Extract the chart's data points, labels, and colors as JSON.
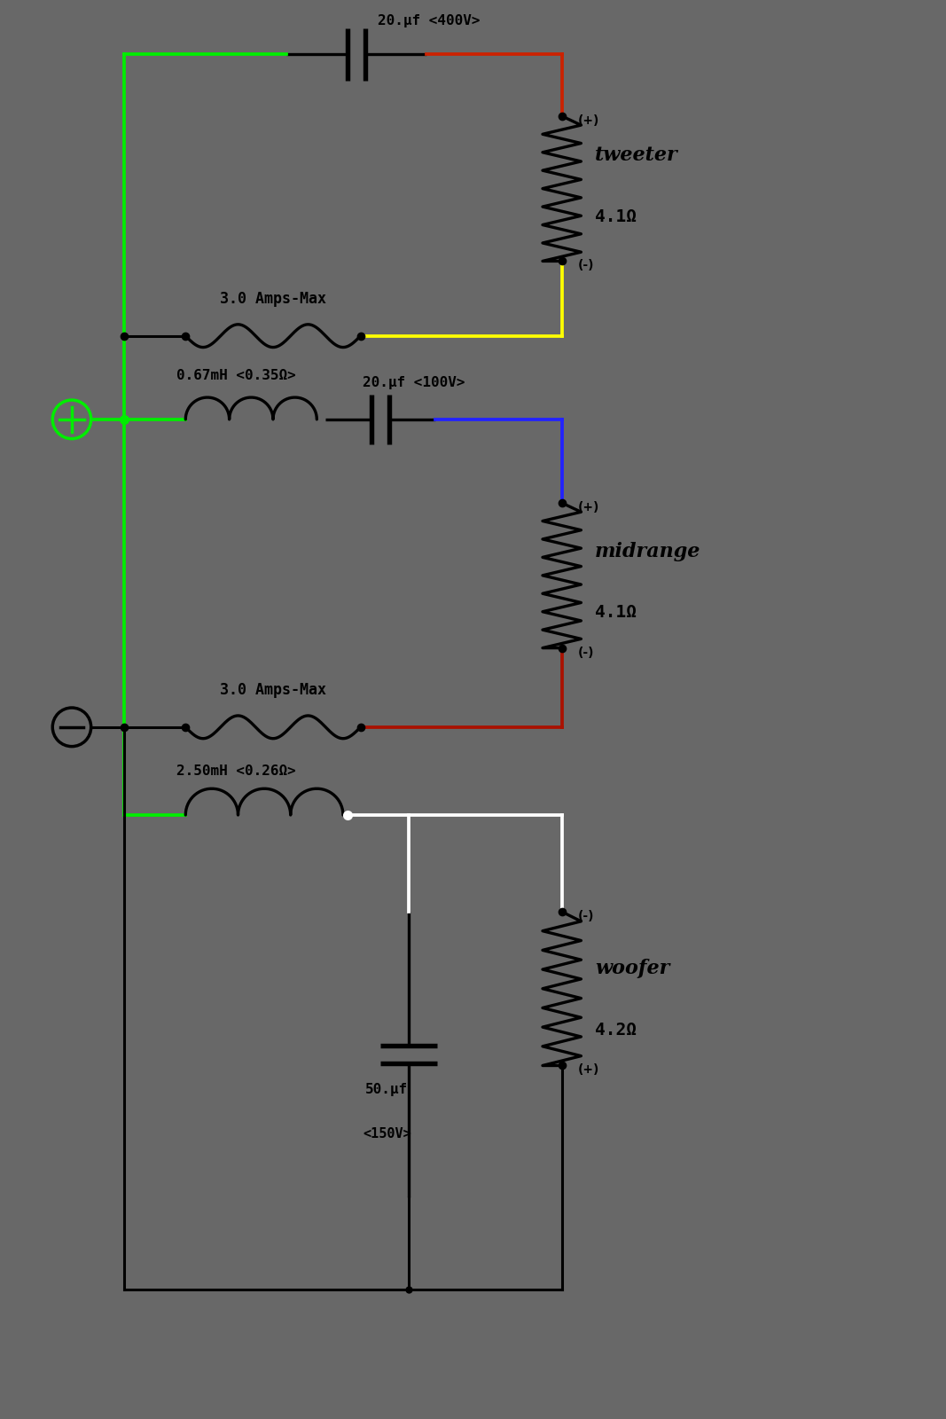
{
  "bg_color": "#686868",
  "cap1_label": "20.μf <400V>",
  "cap2_label": "20.μf <100V>",
  "cap3_label": "50.μf",
  "cap3_label2": "<150V>",
  "ind1_label": "3.0 Amps-Max",
  "ind2_label": "0.67mH <0.35Ω>",
  "ind3_label": "3.0 Amps-Max",
  "ind4_label": "2.50mH <0.26Ω>",
  "tweeter_label": "tweeter",
  "tweeter_ohm": "4.1Ω",
  "midrange_label": "midrange",
  "midrange_ohm": "4.1Ω",
  "woofer_label": "woofer",
  "woofer_ohm": "4.2Ω",
  "color_green": "#00ee00",
  "color_red": "#cc2200",
  "color_yellow": "#ffff00",
  "color_blue": "#2222ff",
  "color_dark_red": "#aa1100",
  "color_white": "#ffffff",
  "color_black": "#000000",
  "lw_wire": 2.2,
  "lw_comp": 2.4,
  "dot_size": 7
}
